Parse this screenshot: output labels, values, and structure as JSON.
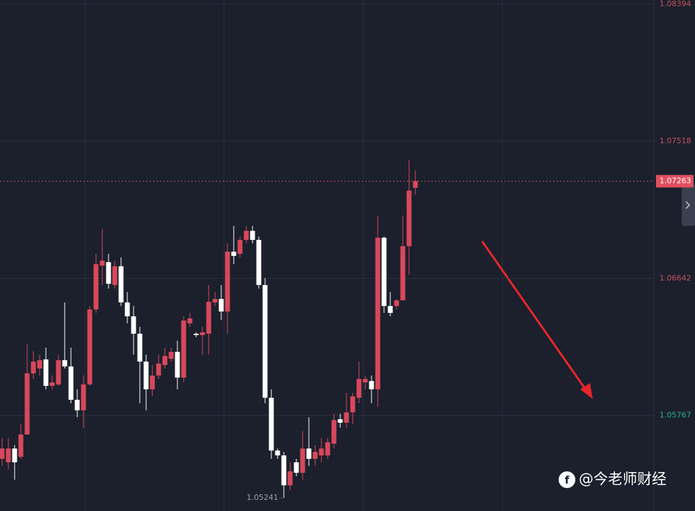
{
  "chart_data": {
    "type": "candlestick",
    "open": [
      1.0549,
      1.05468,
      1.05556,
      1.05503,
      1.05645,
      1.06036,
      1.06067,
      1.06125,
      1.05956,
      1.05965,
      1.0612,
      1.0608,
      1.05867,
      1.058,
      1.05965,
      1.06444,
      1.06724,
      1.06746,
      1.066,
      1.0672,
      1.06489,
      1.064,
      1.06289,
      1.06111,
      1.05934,
      1.06022,
      1.06089,
      1.06129,
      1.06173,
      1.06009,
      1.06355,
      1.06289,
      1.0628,
      1.06289,
      1.06489,
      1.06511,
      1.06431,
      1.06813,
      1.06799,
      1.06888,
      1.06946,
      1.06888,
      1.066,
      1.0588,
      1.05543,
      1.05512,
      1.05321,
      1.05468,
      1.05401,
      1.05556,
      1.0549,
      1.05512,
      1.05512,
      1.05587,
      1.05743,
      1.05721,
      1.05787,
      1.0588,
      1.05978,
      1.05987,
      1.05934,
      1.06902,
      1.06466,
      1.06466,
      1.06502,
      1.06848,
      1.07221
    ],
    "high": [
      1.05623,
      1.05623,
      1.05578,
      1.05712,
      1.06222,
      1.06178,
      1.06156,
      1.062,
      1.06022,
      1.06156,
      1.06489,
      1.062,
      1.05934,
      1.06022,
      1.06466,
      1.06799,
      1.06955,
      1.06799,
      1.06755,
      1.06777,
      1.06555,
      1.06466,
      1.06333,
      1.06156,
      1.06089,
      1.06156,
      1.062,
      1.062,
      1.06244,
      1.064,
      1.06422,
      1.06298,
      1.06333,
      1.066,
      1.06555,
      1.066,
      1.06866,
      1.06977,
      1.0691,
      1.06977,
      1.06977,
      1.0691,
      1.06644,
      1.05934,
      1.05556,
      1.05534,
      1.05468,
      1.0549,
      1.05667,
      1.05756,
      1.05578,
      1.05623,
      1.05623,
      1.05778,
      1.05778,
      1.05911,
      1.05911,
      1.06111,
      1.06022,
      1.06022,
      1.07044,
      1.0691,
      1.06555,
      1.06511,
      1.07044,
      1.07399,
      1.07332
    ],
    "low": [
      1.05445,
      1.05423,
      1.05356,
      1.0549,
      1.05645,
      1.06,
      1.06022,
      1.05934,
      1.05934,
      1.05956,
      1.06067,
      1.05845,
      1.05756,
      1.05689,
      1.05956,
      1.06422,
      1.066,
      1.06577,
      1.06577,
      1.06466,
      1.06355,
      1.06156,
      1.05845,
      1.058,
      1.05889,
      1.06,
      1.06067,
      1.06111,
      1.05934,
      1.05978,
      1.06333,
      1.06267,
      1.06156,
      1.06156,
      1.06466,
      1.06376,
      1.06289,
      1.06733,
      1.06777,
      1.06866,
      1.06866,
      1.06577,
      1.05845,
      1.0549,
      1.0549,
      1.05241,
      1.0529,
      1.05379,
      1.05356,
      1.05445,
      1.05445,
      1.05468,
      1.0549,
      1.05556,
      1.05689,
      1.05689,
      1.05712,
      1.05845,
      1.05934,
      1.05845,
      1.05823,
      1.06422,
      1.064,
      1.06444,
      1.06502,
      1.06666,
      1.07177
    ],
    "close": [
      1.05556,
      1.05556,
      1.05468,
      1.05645,
      1.06036,
      1.06111,
      1.0612,
      1.05956,
      1.05978,
      1.0612,
      1.0608,
      1.05867,
      1.058,
      1.05965,
      1.06444,
      1.06733,
      1.06755,
      1.06608,
      1.0672,
      1.06489,
      1.064,
      1.06289,
      1.06111,
      1.05934,
      1.06022,
      1.06098,
      1.06147,
      1.06173,
      1.06009,
      1.06373,
      1.06387,
      1.0628,
      1.06298,
      1.06493,
      1.06511,
      1.06431,
      1.06813,
      1.06786,
      1.06888,
      1.06946,
      1.06888,
      1.066,
      1.0588,
      1.05543,
      1.05512,
      1.05321,
      1.0541,
      1.05401,
      1.05556,
      1.0549,
      1.05534,
      1.05556,
      1.05596,
      1.05738,
      1.05721,
      1.05787,
      1.05889,
      1.06,
      1.06,
      1.05934,
      1.06902,
      1.06466,
      1.06422,
      1.06502,
      1.06848,
      1.07203,
      1.07263
    ],
    "up_color": "#d8485c",
    "down_color": "#ffffff",
    "ylim": [
      1.05157,
      1.0842
    ],
    "yticks": [
      1.08394,
      1.07518,
      1.06642,
      1.05767
    ],
    "last_price": 1.07263,
    "low_label": 1.05241
  },
  "watermark": "@今老师财经"
}
